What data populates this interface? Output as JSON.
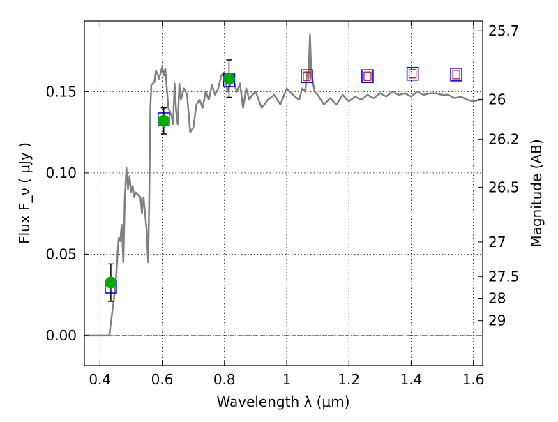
{
  "chart_data": {
    "type": "line",
    "title": "",
    "xlabel": "Wavelength  λ (μm)",
    "ylabel": "Flux  F_ν  ( μJy )",
    "ylabel_right": "Magnitude (AB)",
    "xlim": [
      0.35,
      1.63
    ],
    "ylim": [
      -0.0185,
      0.1935
    ],
    "grid": true,
    "x_ticks": [
      0.4,
      0.6,
      0.8,
      1.0,
      1.2,
      1.4,
      1.6
    ],
    "x_tick_labels": [
      "0.4",
      "0.6",
      "0.8",
      "1",
      "1.2",
      "1.4",
      "1.6"
    ],
    "y_ticks": [
      0.0,
      0.05,
      0.1,
      0.15
    ],
    "y_tick_labels": [
      "0.00",
      "0.05",
      "0.10",
      "0.15"
    ],
    "right_ticks": [
      {
        "flux": 0.1874,
        "label": "25.7"
      },
      {
        "flux": 0.1452,
        "label": "26"
      },
      {
        "flux": 0.1207,
        "label": "26.2"
      },
      {
        "flux": 0.0912,
        "label": "26.5"
      },
      {
        "flux": 0.0575,
        "label": "27"
      },
      {
        "flux": 0.0363,
        "label": "27.5"
      },
      {
        "flux": 0.0229,
        "label": "28"
      },
      {
        "flux": 0.0091,
        "label": "29"
      }
    ],
    "series": [
      {
        "type": "line",
        "color": "#808080",
        "x": [
          0.35,
          0.42,
          0.43,
          0.44,
          0.45,
          0.455,
          0.46,
          0.465,
          0.47,
          0.475,
          0.48,
          0.485,
          0.49,
          0.495,
          0.5,
          0.505,
          0.51,
          0.515,
          0.52,
          0.53,
          0.535,
          0.54,
          0.55,
          0.555,
          0.558,
          0.562,
          0.565,
          0.575,
          0.58,
          0.59,
          0.6,
          0.605,
          0.61,
          0.615,
          0.62,
          0.63,
          0.635,
          0.64,
          0.645,
          0.65,
          0.655,
          0.66,
          0.67,
          0.68,
          0.69,
          0.7,
          0.71,
          0.72,
          0.73,
          0.74,
          0.75,
          0.76,
          0.77,
          0.78,
          0.79,
          0.8,
          0.81,
          0.82,
          0.83,
          0.84,
          0.85,
          0.86,
          0.87,
          0.88,
          0.89,
          0.9,
          0.92,
          0.94,
          0.96,
          0.98,
          1.0,
          1.02,
          1.04,
          1.05,
          1.06,
          1.065,
          1.07,
          1.075,
          1.08,
          1.085,
          1.09,
          1.1,
          1.12,
          1.14,
          1.16,
          1.18,
          1.2,
          1.22,
          1.24,
          1.26,
          1.28,
          1.3,
          1.32,
          1.34,
          1.36,
          1.38,
          1.4,
          1.42,
          1.44,
          1.46,
          1.48,
          1.5,
          1.52,
          1.54,
          1.56,
          1.58,
          1.6,
          1.62,
          1.63
        ],
        "y": [
          0.0,
          0.0,
          0.0,
          0.015,
          0.03,
          0.045,
          0.06,
          0.058,
          0.068,
          0.045,
          0.085,
          0.103,
          0.09,
          0.098,
          0.088,
          0.092,
          0.085,
          0.088,
          0.087,
          0.085,
          0.075,
          0.085,
          0.065,
          0.045,
          0.08,
          0.14,
          0.154,
          0.156,
          0.163,
          0.158,
          0.165,
          0.16,
          0.164,
          0.152,
          0.14,
          0.135,
          0.13,
          0.155,
          0.138,
          0.13,
          0.155,
          0.145,
          0.152,
          0.148,
          0.125,
          0.128,
          0.142,
          0.145,
          0.14,
          0.15,
          0.145,
          0.154,
          0.148,
          0.152,
          0.16,
          0.162,
          0.15,
          0.155,
          0.156,
          0.15,
          0.155,
          0.14,
          0.152,
          0.145,
          0.148,
          0.15,
          0.14,
          0.145,
          0.148,
          0.142,
          0.152,
          0.148,
          0.145,
          0.152,
          0.15,
          0.162,
          0.158,
          0.185,
          0.16,
          0.155,
          0.15,
          0.148,
          0.142,
          0.146,
          0.142,
          0.148,
          0.144,
          0.147,
          0.145,
          0.148,
          0.146,
          0.149,
          0.147,
          0.15,
          0.148,
          0.149,
          0.147,
          0.15,
          0.148,
          0.149,
          0.149,
          0.148,
          0.148,
          0.146,
          0.147,
          0.145,
          0.144,
          0.145,
          0.145
        ]
      },
      {
        "type": "scatter",
        "marker": "circle",
        "color": "#00aa00",
        "x": [
          0.435,
          0.605,
          0.815
        ],
        "y": [
          0.0325,
          0.132,
          0.158
        ],
        "yerr": [
          0.0115,
          0.008,
          0.0115
        ]
      },
      {
        "type": "scatter",
        "marker": "square",
        "color": "#0000ff",
        "x": [
          0.435,
          0.605,
          0.815
        ],
        "y": [
          0.03,
          0.133,
          0.157
        ]
      },
      {
        "type": "scatter",
        "marker": "double-square",
        "color": "#0000ff",
        "inner_color": "#cc0000",
        "x": [
          1.065,
          1.26,
          1.405,
          1.545
        ],
        "y": [
          0.1595,
          0.1595,
          0.161,
          0.1605
        ]
      }
    ]
  }
}
